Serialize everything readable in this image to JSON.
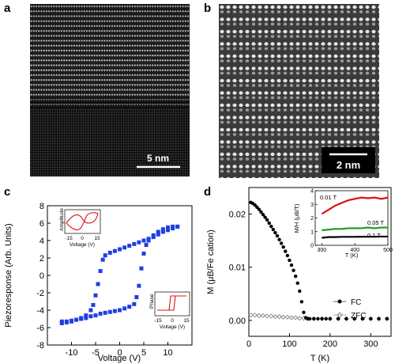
{
  "panels": {
    "a": {
      "letter": "a",
      "scale_bar": "5 nm"
    },
    "b": {
      "letter": "b",
      "scale_bar": "2 nm"
    },
    "c": {
      "letter": "c"
    },
    "d": {
      "letter": "d"
    }
  },
  "chart_data": [
    {
      "id": "c",
      "type": "scatter",
      "xlabel": "Voltage (V)",
      "ylabel": "Piezoresponse (Arb. Units)",
      "xlim": [
        -15,
        15
      ],
      "ylim": [
        -8,
        8
      ],
      "xticks": [
        -10,
        -5,
        0,
        5,
        10
      ],
      "yticks": [
        -8,
        -6,
        -4,
        -2,
        0,
        2,
        4,
        6,
        8
      ],
      "color": "#1f3fe0",
      "series": [
        {
          "values": [
            [
              -12,
              -5.3
            ],
            [
              -11,
              -5.3
            ],
            [
              -10,
              -5.2
            ],
            [
              -9,
              -5.1
            ],
            [
              -8,
              -5.0
            ],
            [
              -7,
              -4.9
            ],
            [
              -6,
              -4.7
            ],
            [
              -5,
              -4.6
            ],
            [
              -4,
              -4.4
            ],
            [
              -3,
              -4.3
            ],
            [
              -2,
              -4.2
            ],
            [
              -1,
              -4.1
            ],
            [
              0,
              -4.0
            ],
            [
              1,
              -3.8
            ],
            [
              2,
              -3.6
            ],
            [
              3,
              -3.3
            ],
            [
              3.5,
              -2.5
            ],
            [
              4,
              -1.2
            ],
            [
              4.5,
              0.8
            ],
            [
              5,
              2.5
            ],
            [
              5.5,
              3.5
            ],
            [
              6,
              4.0
            ],
            [
              7,
              4.6
            ],
            [
              8,
              5.0
            ],
            [
              9,
              5.3
            ],
            [
              10,
              5.5
            ],
            [
              11,
              5.6
            ],
            [
              12,
              5.6
            ]
          ]
        },
        {
          "values": [
            [
              12,
              5.6
            ],
            [
              11,
              5.4
            ],
            [
              10,
              5.2
            ],
            [
              9,
              5.0
            ],
            [
              8,
              4.7
            ],
            [
              7,
              4.4
            ],
            [
              6,
              4.2
            ],
            [
              5,
              4.0
            ],
            [
              4,
              3.8
            ],
            [
              3,
              3.6
            ],
            [
              2,
              3.4
            ],
            [
              1,
              3.2
            ],
            [
              0,
              3.0
            ],
            [
              -1,
              2.8
            ],
            [
              -2,
              2.6
            ],
            [
              -3,
              2.3
            ],
            [
              -3.5,
              1.8
            ],
            [
              -4,
              0.5
            ],
            [
              -4.5,
              -1.0
            ],
            [
              -5,
              -2.3
            ],
            [
              -5.5,
              -3.4
            ],
            [
              -6,
              -4.0
            ],
            [
              -7,
              -4.6
            ],
            [
              -8,
              -4.9
            ],
            [
              -9,
              -5.1
            ],
            [
              -10,
              -5.3
            ],
            [
              -11,
              -5.4
            ],
            [
              -12,
              -5.5
            ]
          ]
        }
      ],
      "insets": [
        {
          "name": "amplitude",
          "ylabel": "Amplitude",
          "xlabel": "Voltage (V)",
          "xticks": [
            -15,
            0,
            15
          ],
          "color": "#e01010"
        },
        {
          "name": "phase",
          "ylabel": "Phase",
          "xlabel": "Voltage (V)",
          "xticks": [
            -15,
            0,
            15
          ],
          "color": "#e01010"
        }
      ]
    },
    {
      "id": "d",
      "type": "scatter",
      "xlabel": "T (K)",
      "ylabel": "M (μB/Fe cation)",
      "xlim": [
        0,
        350
      ],
      "ylim": [
        -0.003,
        0.025
      ],
      "xticks": [
        0,
        100,
        200,
        300
      ],
      "yticks": [
        0.0,
        0.01,
        0.02
      ],
      "legend": "lower-right",
      "series": [
        {
          "name": "FC",
          "marker": "filled-circle",
          "x": [
            5,
            10,
            15,
            20,
            25,
            30,
            35,
            40,
            45,
            50,
            55,
            60,
            65,
            70,
            75,
            80,
            85,
            90,
            95,
            100,
            105,
            110,
            115,
            120,
            125,
            130,
            135,
            140,
            145,
            150,
            160,
            170,
            180,
            190,
            200,
            220,
            240,
            260,
            280,
            300,
            320,
            340
          ],
          "y": [
            0.0222,
            0.022,
            0.0217,
            0.0213,
            0.0209,
            0.0204,
            0.0199,
            0.0194,
            0.0189,
            0.0183,
            0.0177,
            0.0171,
            0.0165,
            0.0159,
            0.0152,
            0.0145,
            0.0138,
            0.013,
            0.0122,
            0.0113,
            0.0104,
            0.0094,
            0.0083,
            0.007,
            0.0055,
            0.0035,
            0.0015,
            0.0005,
            0.0003,
            0.0003,
            0.0003,
            0.0003,
            0.0003,
            0.0003,
            0.0003,
            0.0003,
            0.0003,
            0.0003,
            0.0003,
            0.0003,
            0.0003,
            0.0003
          ]
        },
        {
          "name": "ZFC",
          "marker": "open-diamond",
          "x": [
            5,
            15,
            25,
            35,
            45,
            55,
            65,
            75,
            85,
            95,
            105,
            115,
            125,
            135,
            145,
            160,
            180,
            200,
            220,
            240,
            260,
            280,
            300,
            320,
            340
          ],
          "y": [
            0.001,
            0.001,
            0.0009,
            0.0009,
            0.0008,
            0.0008,
            0.0007,
            0.0007,
            0.0006,
            0.0006,
            0.0005,
            0.0005,
            0.0004,
            0.0004,
            0.0003,
            0.0003,
            0.0003,
            0.0003,
            0.0003,
            0.0003,
            0.0003,
            0.0003,
            0.0003,
            0.0003,
            0.0003
          ]
        }
      ],
      "inset": {
        "xlabel": "T (K)",
        "ylabel": "M/H (μB/T)",
        "xlim": [
          280,
          500
        ],
        "ylim": [
          0,
          4
        ],
        "xticks": [
          300,
          400,
          500
        ],
        "yticks": [
          0,
          1,
          2,
          3,
          4
        ],
        "series": [
          {
            "name": "0.01 T",
            "color": "#e01010",
            "x": [
              300,
              320,
              340,
              360,
              380,
              400,
              420,
              440,
              460,
              480,
              500
            ],
            "y": [
              2.3,
              2.6,
              2.9,
              3.1,
              3.3,
              3.4,
              3.5,
              3.45,
              3.5,
              3.4,
              3.5
            ]
          },
          {
            "name": "0.05 T",
            "color": "#1a9a1a",
            "x": [
              300,
              320,
              340,
              360,
              380,
              400,
              420,
              440,
              460,
              480,
              500
            ],
            "y": [
              1.1,
              1.15,
              1.2,
              1.2,
              1.25,
              1.25,
              1.25,
              1.3,
              1.25,
              1.3,
              1.3
            ]
          },
          {
            "name": "0.1 T",
            "color": "#000000",
            "x": [
              300,
              320,
              340,
              360,
              380,
              400,
              420,
              440,
              460,
              480,
              500
            ],
            "y": [
              0.55,
              0.6,
              0.6,
              0.62,
              0.62,
              0.62,
              0.63,
              0.63,
              0.63,
              0.64,
              0.64
            ]
          }
        ]
      }
    }
  ]
}
